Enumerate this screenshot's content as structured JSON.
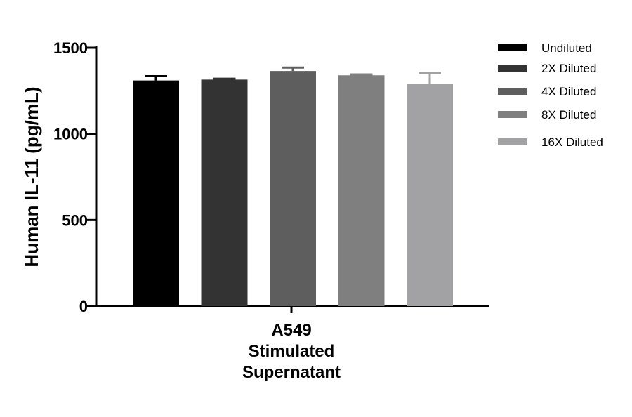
{
  "chart_data": {
    "type": "bar",
    "ylabel": "Human IL-11 (pg/mL)",
    "ylim": [
      0,
      1500
    ],
    "yticks": [
      0,
      500,
      1000,
      1500
    ],
    "category_lines": [
      "A549",
      "Stimulated",
      "Supernatant"
    ],
    "series": [
      {
        "name": "Undiluted",
        "value": 1310,
        "error": 25,
        "color": "#000000"
      },
      {
        "name": "2X Diluted",
        "value": 1315,
        "error": 5,
        "color": "#333333"
      },
      {
        "name": "4X Diluted",
        "value": 1365,
        "error": 20,
        "color": "#5e5e5e"
      },
      {
        "name": "8X Diluted",
        "value": 1340,
        "error": 5,
        "color": "#7f7f7f"
      },
      {
        "name": "16X Diluted",
        "value": 1288,
        "error": 65,
        "color": "#a2a2a4"
      }
    ],
    "grid": false,
    "legend_position": "right"
  }
}
